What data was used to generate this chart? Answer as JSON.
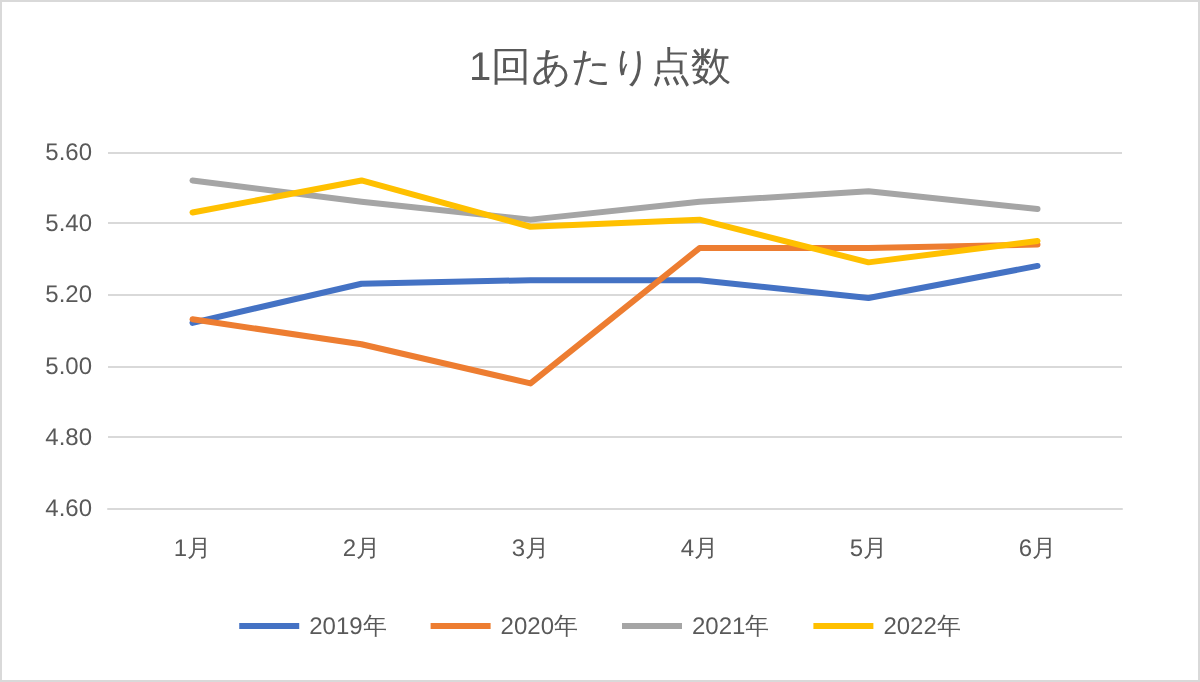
{
  "chart_data": {
    "type": "line",
    "title": "1回あたり点数",
    "categories": [
      "1月",
      "2月",
      "3月",
      "4月",
      "5月",
      "6月"
    ],
    "series": [
      {
        "name": "2019年",
        "color": "#4472c4",
        "values": [
          5.12,
          5.23,
          5.24,
          5.24,
          5.19,
          5.28
        ]
      },
      {
        "name": "2020年",
        "color": "#ed7d31",
        "values": [
          5.13,
          5.06,
          4.95,
          5.33,
          5.33,
          5.34
        ]
      },
      {
        "name": "2021年",
        "color": "#a5a5a5",
        "values": [
          5.52,
          5.46,
          5.41,
          5.46,
          5.49,
          5.44
        ]
      },
      {
        "name": "2022年",
        "color": "#ffc000",
        "values": [
          5.43,
          5.52,
          5.39,
          5.41,
          5.29,
          5.35
        ]
      }
    ],
    "ylim": [
      4.6,
      5.6
    ],
    "yticks": [
      {
        "value": 4.6,
        "label": "4.60"
      },
      {
        "value": 4.8,
        "label": "4.80"
      },
      {
        "value": 5.0,
        "label": "5.00"
      },
      {
        "value": 5.2,
        "label": "5.20"
      },
      {
        "value": 5.4,
        "label": "5.40"
      },
      {
        "value": 5.6,
        "label": "5.60"
      }
    ],
    "grid": "y",
    "legend": "bottom",
    "marker": "none",
    "line_style": "solid"
  }
}
